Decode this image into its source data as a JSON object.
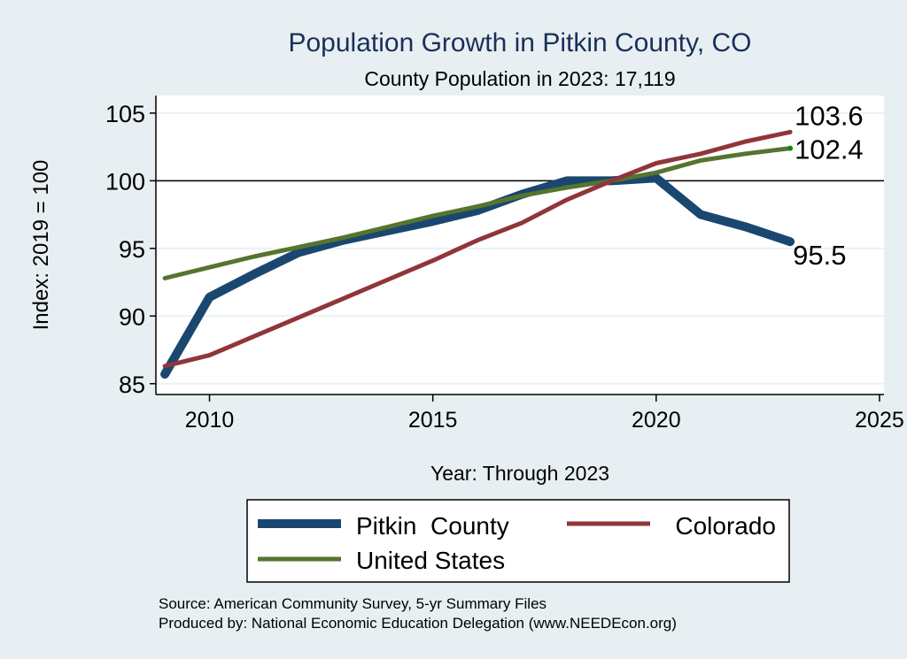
{
  "chart_data": {
    "type": "line",
    "title": "Population Growth in Pitkin County, CO",
    "subtitle": "County Population in 2023: 17,119",
    "xlabel": "Year: Through 2023",
    "ylabel": "Index: 2019 = 100",
    "xlim": [
      2008.8,
      2025.1
    ],
    "ylim": [
      84.2,
      106.3
    ],
    "xticks": [
      2010,
      2015,
      2020,
      2025
    ],
    "yticks": [
      85,
      90,
      95,
      100,
      105
    ],
    "reference_line": 100,
    "grid": true,
    "x": [
      2009,
      2010,
      2011,
      2012,
      2013,
      2014,
      2015,
      2016,
      2017,
      2018,
      2019,
      2020,
      2021,
      2022,
      2023
    ],
    "series": [
      {
        "name": "Pitkin  County",
        "color": "#1a476f",
        "width": 10,
        "values": [
          85.7,
          91.4,
          93.1,
          94.7,
          95.6,
          96.3,
          97.0,
          97.8,
          99.0,
          100.0,
          100.0,
          100.2,
          97.5,
          96.6,
          95.5
        ],
        "end_label": "95.5"
      },
      {
        "name": "Colorado",
        "color": "#90353b",
        "width": 5,
        "values": [
          86.3,
          87.1,
          88.5,
          89.9,
          91.3,
          92.7,
          94.1,
          95.6,
          96.9,
          98.6,
          100.0,
          101.3,
          102.0,
          102.9,
          103.6
        ],
        "end_label": "103.6"
      },
      {
        "name": "United States",
        "color": "#55752f",
        "width": 5,
        "values": [
          92.8,
          93.6,
          94.4,
          95.1,
          95.8,
          96.6,
          97.4,
          98.1,
          98.9,
          99.5,
          100.0,
          100.6,
          101.5,
          102.0,
          102.4
        ],
        "end_label": "102.4"
      }
    ],
    "legend": {
      "placement": "bottom",
      "entries": [
        "Pitkin  County",
        "Colorado",
        "United States"
      ]
    },
    "notes": [
      "Source: American Community Survey, 5-yr Summary Files",
      "Produced by: National Economic Education Delegation (www.NEEDEcon.org)"
    ]
  }
}
